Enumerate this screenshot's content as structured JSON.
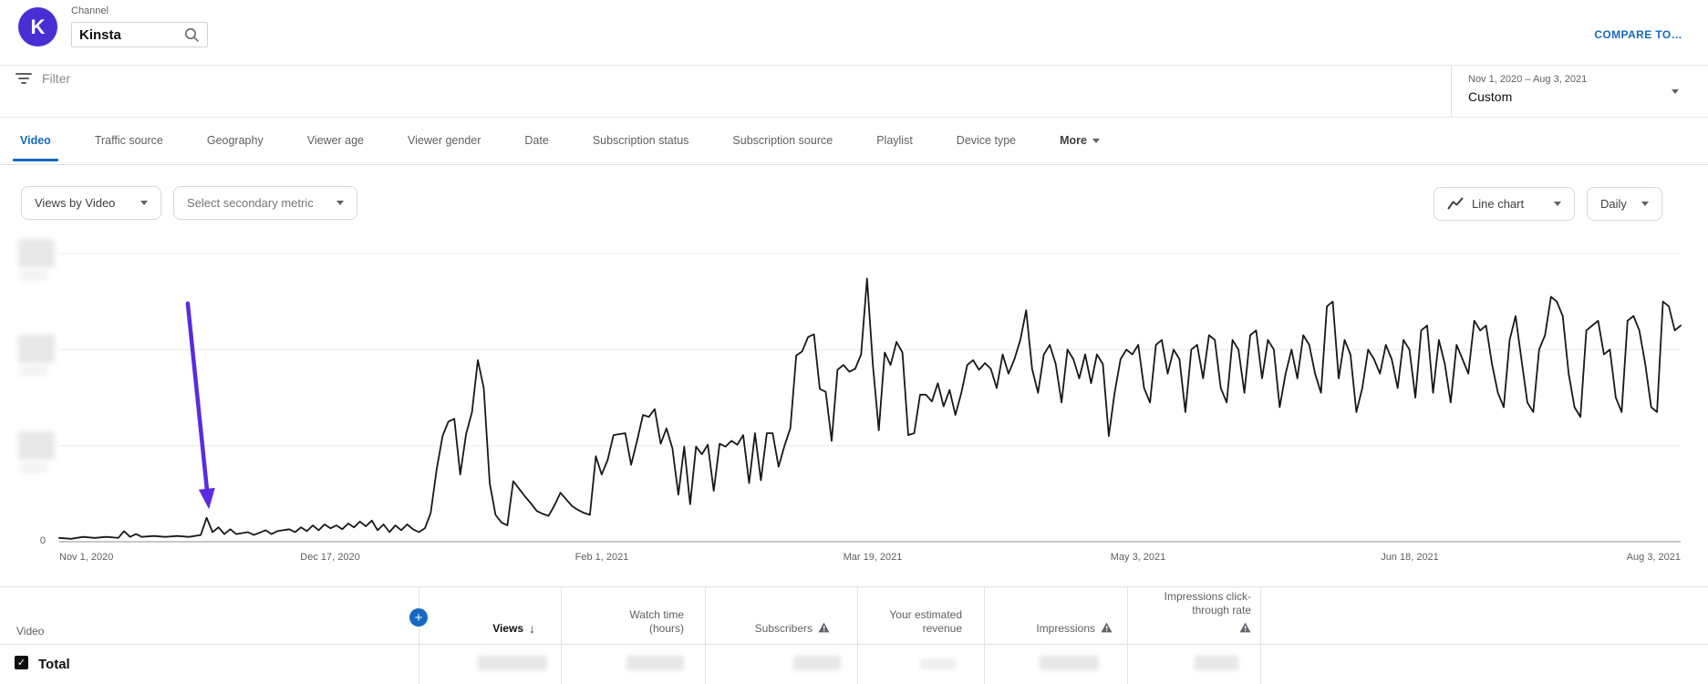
{
  "header": {
    "channel_label": "Channel",
    "channel_name": "Kinsta",
    "avatar_letter": "K",
    "compare_link": "COMPARE TO…"
  },
  "filter_bar": {
    "placeholder": "Filter",
    "date_range": "Nov 1, 2020 – Aug 3, 2021",
    "date_mode": "Custom"
  },
  "tabs": {
    "items": [
      "Video",
      "Traffic source",
      "Geography",
      "Viewer age",
      "Viewer gender",
      "Date",
      "Subscription status",
      "Subscription source",
      "Playlist",
      "Device type",
      "More"
    ],
    "active": "Video"
  },
  "controls": {
    "primary_metric": "Views by Video",
    "secondary_metric": "Select secondary metric",
    "chart_type": "Line chart",
    "interval": "Daily"
  },
  "chart_data": {
    "type": "line",
    "title": "Views by Video",
    "xlabel": "",
    "ylabel": "",
    "x_start_date": "Nov 1, 2020",
    "x_end_date": "Aug 3, 2021",
    "x_ticks": [
      {
        "day": 0,
        "label": "Nov 1, 2020"
      },
      {
        "day": 46,
        "label": "Dec 17, 2020"
      },
      {
        "day": 92,
        "label": "Feb 1, 2021"
      },
      {
        "day": 138,
        "label": "Mar 19, 2021"
      },
      {
        "day": 183,
        "label": "May 3, 2021"
      },
      {
        "day": 229,
        "label": "Jun 18, 2021"
      },
      {
        "day": 275,
        "label": "Aug 3, 2021"
      }
    ],
    "y_axis": {
      "baseline_label": "0",
      "gridline_units": [
        1,
        2,
        3
      ],
      "gridline_labels_redacted": true,
      "unit_note": "values in gridline units; numeric y labels are blurred in source"
    },
    "annotation_arrow": {
      "start_day": 21.8,
      "start_value": 2.48,
      "end_day": 25.1,
      "end_value": 0.51
    },
    "series_points": [
      [
        0,
        0.04
      ],
      [
        2,
        0.03
      ],
      [
        4,
        0.05
      ],
      [
        6,
        0.04
      ],
      [
        8,
        0.05
      ],
      [
        10,
        0.04
      ],
      [
        11,
        0.11
      ],
      [
        12,
        0.05
      ],
      [
        13,
        0.08
      ],
      [
        14,
        0.05
      ],
      [
        16,
        0.06
      ],
      [
        18,
        0.05
      ],
      [
        20,
        0.06
      ],
      [
        22,
        0.05
      ],
      [
        24,
        0.07
      ],
      [
        25,
        0.25
      ],
      [
        26,
        0.1
      ],
      [
        27,
        0.15
      ],
      [
        28,
        0.08
      ],
      [
        29,
        0.13
      ],
      [
        30,
        0.08
      ],
      [
        32,
        0.1
      ],
      [
        33,
        0.07
      ],
      [
        35,
        0.12
      ],
      [
        36,
        0.08
      ],
      [
        37,
        0.11
      ],
      [
        39,
        0.13
      ],
      [
        40,
        0.1
      ],
      [
        41,
        0.15
      ],
      [
        42,
        0.11
      ],
      [
        43,
        0.17
      ],
      [
        44,
        0.12
      ],
      [
        45,
        0.18
      ],
      [
        46,
        0.14
      ],
      [
        47,
        0.17
      ],
      [
        48,
        0.13
      ],
      [
        49,
        0.19
      ],
      [
        50,
        0.15
      ],
      [
        51,
        0.21
      ],
      [
        52,
        0.16
      ],
      [
        53,
        0.22
      ],
      [
        54,
        0.12
      ],
      [
        55,
        0.18
      ],
      [
        56,
        0.1
      ],
      [
        57,
        0.17
      ],
      [
        58,
        0.12
      ],
      [
        59,
        0.18
      ],
      [
        60,
        0.13
      ],
      [
        61,
        0.1
      ],
      [
        62,
        0.14
      ],
      [
        63,
        0.3
      ],
      [
        64,
        0.75
      ],
      [
        65,
        1.1
      ],
      [
        66,
        1.25
      ],
      [
        67,
        1.28
      ],
      [
        68,
        0.7
      ],
      [
        69,
        1.12
      ],
      [
        70,
        1.35
      ],
      [
        71,
        1.89
      ],
      [
        72,
        1.6
      ],
      [
        73,
        0.61
      ],
      [
        74,
        0.28
      ],
      [
        75,
        0.2
      ],
      [
        76,
        0.17
      ],
      [
        77,
        0.63
      ],
      [
        78,
        0.55
      ],
      [
        79,
        0.47
      ],
      [
        80,
        0.4
      ],
      [
        81,
        0.32
      ],
      [
        82,
        0.29
      ],
      [
        83,
        0.27
      ],
      [
        84,
        0.38
      ],
      [
        85,
        0.51
      ],
      [
        86,
        0.44
      ],
      [
        87,
        0.37
      ],
      [
        88,
        0.33
      ],
      [
        89,
        0.3
      ],
      [
        90,
        0.28
      ],
      [
        91,
        0.89
      ],
      [
        92,
        0.7
      ],
      [
        93,
        0.85
      ],
      [
        94,
        1.11
      ],
      [
        95,
        1.12
      ],
      [
        96,
        1.13
      ],
      [
        97,
        0.8
      ],
      [
        98,
        1.05
      ],
      [
        99,
        1.32
      ],
      [
        100,
        1.3
      ],
      [
        101,
        1.38
      ],
      [
        102,
        1.02
      ],
      [
        103,
        1.18
      ],
      [
        104,
        0.97
      ],
      [
        105,
        0.49
      ],
      [
        106,
        0.99
      ],
      [
        107,
        0.39
      ],
      [
        108,
        0.99
      ],
      [
        109,
        0.91
      ],
      [
        110,
        1.01
      ],
      [
        111,
        0.53
      ],
      [
        112,
        1.02
      ],
      [
        113,
        0.99
      ],
      [
        114,
        1.05
      ],
      [
        115,
        1.01
      ],
      [
        116,
        1.11
      ],
      [
        117,
        0.61
      ],
      [
        118,
        1.13
      ],
      [
        119,
        0.64
      ],
      [
        120,
        1.13
      ],
      [
        121,
        1.13
      ],
      [
        122,
        0.78
      ],
      [
        123,
        1.0
      ],
      [
        124,
        1.18
      ],
      [
        125,
        1.94
      ],
      [
        126,
        1.98
      ],
      [
        127,
        2.13
      ],
      [
        128,
        2.16
      ],
      [
        129,
        1.59
      ],
      [
        130,
        1.56
      ],
      [
        131,
        1.05
      ],
      [
        132,
        1.79
      ],
      [
        133,
        1.84
      ],
      [
        134,
        1.77
      ],
      [
        135,
        1.8
      ],
      [
        136,
        1.95
      ],
      [
        137,
        2.74
      ],
      [
        138,
        1.84
      ],
      [
        139,
        1.16
      ],
      [
        140,
        1.97
      ],
      [
        141,
        1.84
      ],
      [
        142,
        2.08
      ],
      [
        143,
        1.97
      ],
      [
        144,
        1.11
      ],
      [
        145,
        1.13
      ],
      [
        146,
        1.53
      ],
      [
        147,
        1.53
      ],
      [
        148,
        1.46
      ],
      [
        149,
        1.65
      ],
      [
        150,
        1.41
      ],
      [
        151,
        1.58
      ],
      [
        152,
        1.32
      ],
      [
        153,
        1.55
      ],
      [
        154,
        1.84
      ],
      [
        155,
        1.89
      ],
      [
        156,
        1.79
      ],
      [
        157,
        1.86
      ],
      [
        158,
        1.8
      ],
      [
        159,
        1.6
      ],
      [
        160,
        1.95
      ],
      [
        161,
        1.75
      ],
      [
        162,
        1.9
      ],
      [
        163,
        2.1
      ],
      [
        164,
        2.41
      ],
      [
        165,
        1.8
      ],
      [
        166,
        1.55
      ],
      [
        167,
        1.95
      ],
      [
        168,
        2.05
      ],
      [
        169,
        1.85
      ],
      [
        170,
        1.45
      ],
      [
        171,
        2.0
      ],
      [
        172,
        1.9
      ],
      [
        173,
        1.7
      ],
      [
        174,
        1.95
      ],
      [
        175,
        1.65
      ],
      [
        176,
        1.95
      ],
      [
        177,
        1.85
      ],
      [
        178,
        1.1
      ],
      [
        179,
        1.55
      ],
      [
        180,
        1.9
      ],
      [
        181,
        2.0
      ],
      [
        182,
        1.95
      ],
      [
        183,
        2.05
      ],
      [
        184,
        1.6
      ],
      [
        185,
        1.45
      ],
      [
        186,
        2.05
      ],
      [
        187,
        2.1
      ],
      [
        188,
        1.75
      ],
      [
        189,
        2.0
      ],
      [
        190,
        1.9
      ],
      [
        191,
        1.35
      ],
      [
        192,
        2.0
      ],
      [
        193,
        2.05
      ],
      [
        194,
        1.7
      ],
      [
        195,
        2.15
      ],
      [
        196,
        2.1
      ],
      [
        197,
        1.6
      ],
      [
        198,
        1.45
      ],
      [
        199,
        2.1
      ],
      [
        200,
        2.0
      ],
      [
        201,
        1.55
      ],
      [
        202,
        2.15
      ],
      [
        203,
        2.2
      ],
      [
        204,
        1.7
      ],
      [
        205,
        2.1
      ],
      [
        206,
        2.0
      ],
      [
        207,
        1.4
      ],
      [
        208,
        1.75
      ],
      [
        209,
        2.0
      ],
      [
        210,
        1.7
      ],
      [
        211,
        2.15
      ],
      [
        212,
        2.05
      ],
      [
        213,
        1.75
      ],
      [
        214,
        1.55
      ],
      [
        215,
        2.45
      ],
      [
        216,
        2.5
      ],
      [
        217,
        1.7
      ],
      [
        218,
        2.1
      ],
      [
        219,
        1.95
      ],
      [
        220,
        1.35
      ],
      [
        221,
        1.6
      ],
      [
        222,
        2.0
      ],
      [
        223,
        1.9
      ],
      [
        224,
        1.75
      ],
      [
        225,
        2.05
      ],
      [
        226,
        1.9
      ],
      [
        227,
        1.6
      ],
      [
        228,
        2.1
      ],
      [
        229,
        2.0
      ],
      [
        230,
        1.5
      ],
      [
        231,
        2.2
      ],
      [
        232,
        2.25
      ],
      [
        233,
        1.55
      ],
      [
        234,
        2.1
      ],
      [
        235,
        1.85
      ],
      [
        236,
        1.45
      ],
      [
        237,
        2.05
      ],
      [
        238,
        1.9
      ],
      [
        239,
        1.75
      ],
      [
        240,
        2.3
      ],
      [
        241,
        2.2
      ],
      [
        242,
        2.25
      ],
      [
        243,
        1.85
      ],
      [
        244,
        1.55
      ],
      [
        245,
        1.4
      ],
      [
        246,
        2.1
      ],
      [
        247,
        2.35
      ],
      [
        248,
        1.9
      ],
      [
        249,
        1.45
      ],
      [
        250,
        1.35
      ],
      [
        251,
        2.0
      ],
      [
        252,
        2.15
      ],
      [
        253,
        2.55
      ],
      [
        254,
        2.5
      ],
      [
        255,
        2.35
      ],
      [
        256,
        1.75
      ],
      [
        257,
        1.4
      ],
      [
        258,
        1.3
      ],
      [
        259,
        2.2
      ],
      [
        260,
        2.25
      ],
      [
        261,
        2.3
      ],
      [
        262,
        1.95
      ],
      [
        263,
        2.0
      ],
      [
        264,
        1.5
      ],
      [
        265,
        1.35
      ],
      [
        266,
        2.3
      ],
      [
        267,
        2.35
      ],
      [
        268,
        2.2
      ],
      [
        269,
        1.85
      ],
      [
        270,
        1.4
      ],
      [
        271,
        1.35
      ],
      [
        272,
        2.5
      ],
      [
        273,
        2.45
      ],
      [
        274,
        2.2
      ],
      [
        275,
        2.25
      ]
    ]
  },
  "table": {
    "video_header": "Video",
    "add_metric_button": "+",
    "columns": [
      {
        "label": "Views",
        "sorted": true,
        "warning": false
      },
      {
        "label": "Watch time (hours)",
        "sorted": false,
        "warning": false
      },
      {
        "label": "Subscribers",
        "sorted": false,
        "warning": true
      },
      {
        "label": "Your estimated revenue",
        "sorted": false,
        "warning": false
      },
      {
        "label": "Impressions",
        "sorted": false,
        "warning": true
      },
      {
        "label": "Impressions click-through rate",
        "sorted": false,
        "warning": true
      }
    ],
    "total_row": {
      "label": "Total",
      "checked": true,
      "values_redacted": true
    }
  },
  "colors": {
    "accent_blue": "#1669c1",
    "brand_purple": "#4a2ed4",
    "annotation_purple": "#5a2be0",
    "line_color": "#181818"
  }
}
